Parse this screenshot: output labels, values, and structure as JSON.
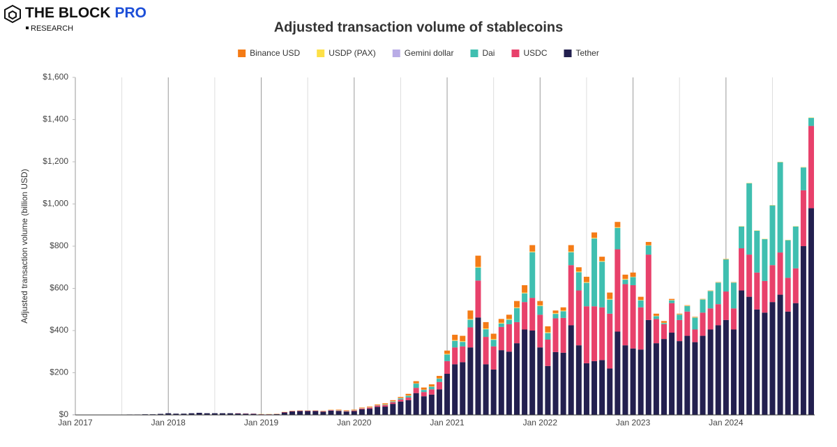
{
  "header": {
    "logo_main": "THE BLOCK",
    "logo_accent": "PRO",
    "logo_sub": "RESEARCH"
  },
  "chart_data": {
    "type": "stacked_bar",
    "title": "Adjusted transaction volume of stablecoins",
    "y_label": "Adjusted transaction volume (billion USD)",
    "ylim": [
      0,
      1600
    ],
    "yticks": [
      {
        "value": 0,
        "label": "$0"
      },
      {
        "value": 200,
        "label": "$200"
      },
      {
        "value": 400,
        "label": "$400"
      },
      {
        "value": 600,
        "label": "$600"
      },
      {
        "value": 800,
        "label": "$800"
      },
      {
        "value": 1000,
        "label": "$1,000"
      },
      {
        "value": 1200,
        "label": "$1,200"
      },
      {
        "value": 1400,
        "label": "$1,400"
      },
      {
        "value": 1600,
        "label": "$1,600"
      }
    ],
    "xgrid": true,
    "legend": "top",
    "categories": [
      "Jan 2017",
      null,
      null,
      null,
      null,
      null,
      null,
      null,
      null,
      null,
      null,
      null,
      "Jan 2018",
      null,
      null,
      null,
      null,
      null,
      null,
      null,
      null,
      null,
      null,
      null,
      "Jan 2019",
      null,
      null,
      null,
      null,
      null,
      null,
      null,
      null,
      null,
      null,
      null,
      "Jan 2020",
      null,
      null,
      null,
      null,
      null,
      null,
      null,
      null,
      null,
      null,
      null,
      "Jan 2021",
      null,
      null,
      null,
      null,
      null,
      null,
      null,
      null,
      null,
      null,
      null,
      "Jan 2022",
      null,
      null,
      null,
      null,
      null,
      null,
      null,
      null,
      null,
      null,
      null,
      "Jan 2023",
      null,
      null,
      null,
      null,
      null,
      null,
      null,
      null,
      null,
      null,
      null,
      "Jan 2024",
      null,
      null,
      null,
      null,
      null,
      null,
      null,
      null,
      null,
      null,
      null
    ],
    "series": [
      {
        "name": "Binance USD",
        "color": "#f47b16",
        "values": [
          0,
          0,
          0,
          0,
          0,
          0,
          0,
          0,
          0,
          0,
          0,
          0,
          0,
          0,
          0,
          0,
          0,
          0,
          0,
          0,
          0,
          0,
          0,
          0,
          0,
          0,
          0,
          0,
          0,
          0,
          0,
          0,
          1,
          1,
          2,
          2,
          2,
          2,
          3,
          3,
          5,
          5,
          5,
          8,
          10,
          10,
          10,
          12,
          15,
          25,
          25,
          40,
          53,
          30,
          25,
          18,
          20,
          30,
          35,
          30,
          20,
          28,
          12,
          15,
          30,
          20,
          25,
          25,
          20,
          30,
          25,
          20,
          20,
          15,
          15,
          10,
          8,
          5,
          3,
          2,
          2,
          1,
          1,
          1,
          1,
          1,
          0,
          0,
          0,
          0,
          0,
          0,
          0,
          0,
          0,
          0
        ]
      },
      {
        "name": "USDP (PAX)",
        "color": "#fde047",
        "values": [
          0,
          0,
          0,
          0,
          0,
          0,
          0,
          0,
          0,
          0,
          0,
          0,
          0,
          0,
          0,
          0,
          0,
          0,
          0,
          0,
          0,
          0,
          0,
          0,
          1,
          1,
          1,
          1,
          1,
          1,
          1,
          1,
          1,
          1,
          1,
          1,
          1,
          1,
          1,
          1,
          1,
          1,
          1,
          1,
          1,
          1,
          1,
          1,
          3,
          3,
          3,
          3,
          3,
          3,
          3,
          3,
          3,
          3,
          3,
          3,
          3,
          3,
          3,
          3,
          3,
          3,
          3,
          3,
          3,
          3,
          3,
          3,
          1.5,
          1.5,
          1.5,
          1.5,
          1.5,
          1.5,
          1.5,
          1.5,
          1.5,
          1.5,
          1.5,
          1.5,
          1.5,
          1.5,
          1.5,
          1.5,
          1.5,
          1.5,
          1.5,
          1.5,
          1.5,
          1.5,
          1.5,
          1.5
        ]
      },
      {
        "name": "Gemini dollar",
        "color": "#b9ace6",
        "values": [
          0,
          0,
          0,
          0,
          0,
          0,
          0,
          0,
          0,
          0,
          0,
          0,
          0,
          0,
          0,
          0,
          0,
          0,
          0,
          0,
          0,
          0,
          0,
          0,
          0.5,
          0.5,
          0.5,
          0.5,
          0.5,
          0.5,
          0.5,
          0.5,
          0.5,
          0.5,
          0.5,
          0.5,
          0.5,
          0.5,
          0.5,
          0.5,
          0.5,
          0.5,
          0.5,
          0.5,
          0.5,
          0.5,
          0.5,
          0.5,
          1,
          1,
          1,
          1,
          1,
          1,
          1,
          1,
          1,
          1,
          1,
          1,
          1,
          1,
          1,
          1,
          1,
          1,
          1,
          1,
          1,
          1,
          1,
          1,
          0.5,
          0.5,
          0.5,
          0.5,
          0.5,
          0.5,
          0.5,
          0.5,
          0.5,
          0.5,
          0.5,
          0.5,
          0.5,
          0.5,
          0.5,
          0.5,
          0.5,
          0.5,
          0.5,
          0.5,
          0.5,
          0.5,
          0.5,
          0.5
        ]
      },
      {
        "name": "Dai",
        "color": "#3fbfb0",
        "values": [
          0,
          0,
          0,
          0,
          0,
          0,
          0,
          0,
          0,
          0,
          0,
          0,
          0,
          0,
          0,
          0,
          0,
          0,
          0,
          0,
          0,
          0,
          0,
          0,
          0,
          0,
          0,
          0,
          0,
          0,
          0,
          0,
          0,
          0,
          0.5,
          0.5,
          0.5,
          0.5,
          1,
          1,
          2,
          3,
          5,
          8,
          20,
          10,
          12,
          15,
          31,
          31,
          21,
          36,
          61,
          36,
          31,
          16,
          21,
          66,
          41,
          216,
          41,
          31,
          21,
          31,
          61,
          86,
          111,
          321,
          216,
          66,
          101,
          21,
          38,
          33,
          43,
          13,
          5,
          13,
          25,
          26,
          56,
          62,
          82,
          102,
          152,
          122,
          103,
          338,
          198,
          198,
          283,
          428,
          178,
          198,
          108,
          38
        ]
      },
      {
        "name": "USDC",
        "color": "#e8416b",
        "values": [
          0,
          0,
          0,
          0,
          0,
          0,
          0,
          0,
          0,
          0,
          0,
          0,
          0,
          0,
          0,
          0,
          0,
          0,
          0,
          0,
          0,
          1,
          1,
          1,
          1,
          1,
          1,
          2,
          2,
          2,
          2,
          2,
          2,
          2,
          2,
          2,
          3,
          4,
          5,
          6,
          7,
          8,
          10,
          12,
          25,
          20,
          25,
          35,
          60,
          80,
          75,
          95,
          175,
          130,
          110,
          110,
          130,
          100,
          130,
          155,
          155,
          125,
          160,
          165,
          285,
          260,
          270,
          260,
          250,
          260,
          390,
          290,
          300,
          200,
          310,
          115,
          70,
          140,
          100,
          115,
          60,
          110,
          100,
          100,
          135,
          100,
          200,
          200,
          175,
          150,
          175,
          200,
          160,
          165,
          265,
          390
        ]
      },
      {
        "name": "Tether",
        "color": "#23204f",
        "values": [
          0.5,
          0.5,
          0.5,
          0.5,
          1,
          1,
          1,
          2,
          2,
          3,
          3,
          5,
          8,
          6,
          6,
          8,
          10,
          8,
          8,
          8,
          8,
          7,
          6,
          5,
          2.5,
          2.5,
          3.5,
          11.5,
          16.5,
          18.5,
          18.5,
          18.5,
          15.5,
          20.5,
          19,
          16,
          18,
          27,
          29.5,
          38.5,
          39.5,
          52.5,
          63.5,
          70.5,
          103.5,
          88.5,
          96.5,
          121.5,
          195,
          240,
          250,
          320,
          462,
          240,
          215,
          307,
          300,
          340,
          405,
          400,
          320,
          232,
          298,
          295,
          425,
          330,
          245,
          255,
          260,
          220,
          395,
          330,
          315,
          310,
          450,
          340,
          360,
          390,
          350,
          375,
          345,
          375,
          405,
          425,
          450,
          405,
          590,
          560,
          500,
          485,
          535,
          570,
          490,
          530,
          800,
          980
        ]
      }
    ]
  }
}
